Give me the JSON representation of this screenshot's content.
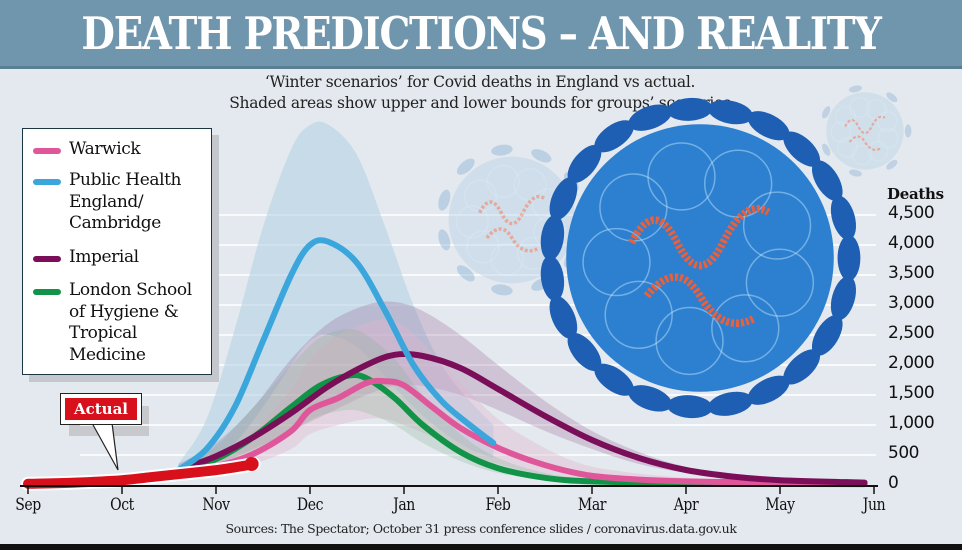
{
  "header": {
    "title": "DEATH PREDICTIONS – AND REALITY"
  },
  "subtitle": {
    "line1": "‘Winter scenarios’ for Covid deaths in England vs actual.",
    "line2": "Shaded areas show upper and lower bounds for groups’ scenarios"
  },
  "legend": {
    "items": [
      {
        "label": "Warwick",
        "color": "#e0569a"
      },
      {
        "label": "Public Health England/ Cambridge",
        "color": "#3aa6dc"
      },
      {
        "label": "Imperial",
        "color": "#7a0e58"
      },
      {
        "label": "London School of Hygiene & Tropical Medicine",
        "color": "#119447"
      }
    ]
  },
  "annotation": {
    "actual_label": "Actual",
    "actual_color": "#d8101c"
  },
  "illustration": {
    "description": "coronavirus-particle-illustration"
  },
  "sources": "Sources: The Spectator; October 31 press conference slides / coronavirus.data.gov.uk",
  "chart_data": {
    "type": "line",
    "title": "DEATH PREDICTIONS – AND REALITY",
    "subtitle": "‘Winter scenarios’ for Covid deaths in England vs actual. Shaded areas show upper and lower bounds for groups’ scenarios",
    "xlabel": "",
    "ylabel": "Deaths",
    "x_ticks": [
      "Sep",
      "Oct",
      "Nov",
      "Dec",
      "Jan",
      "Feb",
      "Mar",
      "Apr",
      "May",
      "Jun"
    ],
    "x_unit": "months since Sep 1",
    "xlim": [
      0,
      9
    ],
    "y_ticks": [
      "0",
      "500",
      "1,000",
      "1,500",
      "2,000",
      "2,500",
      "3,000",
      "3,500",
      "4,000",
      "4,500"
    ],
    "ylim": [
      0,
      4500
    ],
    "grid": "horizontal",
    "legend_position": "top-left",
    "series": [
      {
        "name": "Warwick",
        "color": "#e0569a",
        "x": [
          1.6,
          2.0,
          2.4,
          2.8,
          3.0,
          3.3,
          3.6,
          3.8,
          4.0,
          4.3,
          4.6,
          5.0,
          5.4,
          5.8,
          6.2,
          7.0,
          8.0,
          8.9
        ],
        "values": [
          200,
          310,
          520,
          900,
          1250,
          1450,
          1700,
          1730,
          1660,
          1300,
          950,
          620,
          380,
          210,
          120,
          60,
          40,
          30
        ],
        "band_upper": [
          300,
          450,
          900,
          1600,
          2100,
          2500,
          2700,
          2750,
          2650,
          2200,
          1700,
          1100,
          700,
          400,
          250,
          120,
          70,
          50
        ],
        "band_lower": [
          150,
          220,
          350,
          600,
          850,
          1000,
          1100,
          1100,
          1000,
          800,
          550,
          350,
          200,
          120,
          70,
          40,
          25,
          20
        ]
      },
      {
        "name": "Public Health England/ Cambridge",
        "color": "#3aa6dc",
        "x": [
          1.6,
          1.9,
          2.2,
          2.5,
          2.8,
          3.0,
          3.2,
          3.5,
          3.8,
          4.1,
          4.4,
          4.7,
          4.95
        ],
        "values": [
          250,
          600,
          1300,
          2400,
          3500,
          4000,
          4050,
          3700,
          2900,
          2000,
          1400,
          1000,
          700
        ],
        "band_upper": [
          350,
          1100,
          2600,
          4300,
          5600,
          6000,
          6000,
          5500,
          4300,
          3000,
          2000,
          1400,
          1000
        ],
        "band_lower": [
          180,
          350,
          700,
          1300,
          2000,
          2400,
          2500,
          2300,
          1800,
          1300,
          900,
          600,
          450
        ]
      },
      {
        "name": "Imperial",
        "color": "#7a0e58",
        "x": [
          1.6,
          2.0,
          2.4,
          2.8,
          3.2,
          3.6,
          3.9,
          4.2,
          4.6,
          5.0,
          5.5,
          6.0,
          6.5,
          7.0,
          7.5,
          8.0,
          8.9
        ],
        "values": [
          250,
          480,
          800,
          1200,
          1650,
          2000,
          2170,
          2150,
          1950,
          1600,
          1150,
          750,
          450,
          250,
          140,
          80,
          40
        ],
        "band_upper": [
          350,
          700,
          1300,
          2100,
          2700,
          3000,
          3050,
          2900,
          2500,
          2000,
          1400,
          900,
          550,
          300,
          170,
          100,
          50
        ],
        "band_lower": [
          180,
          350,
          600,
          900,
          1200,
          1500,
          1650,
          1650,
          1500,
          1250,
          900,
          600,
          350,
          200,
          110,
          60,
          30
        ]
      },
      {
        "name": "London School of Hygiene & Tropical Medicine",
        "color": "#119447",
        "x": [
          1.6,
          2.0,
          2.4,
          2.8,
          3.1,
          3.4,
          3.6,
          3.9,
          4.2,
          4.6,
          5.0,
          5.5,
          6.0,
          7.0,
          8.0,
          8.9
        ],
        "values": [
          220,
          430,
          800,
          1300,
          1650,
          1820,
          1780,
          1450,
          1000,
          550,
          280,
          120,
          60,
          30,
          20,
          15
        ],
        "band_upper": [
          300,
          650,
          1300,
          2000,
          2450,
          2600,
          2500,
          2100,
          1500,
          850,
          450,
          200,
          100,
          40,
          25,
          20
        ],
        "band_lower": [
          150,
          300,
          550,
          900,
          1150,
          1250,
          1200,
          1000,
          700,
          400,
          200,
          90,
          40,
          20,
          15,
          10
        ]
      },
      {
        "name": "Actual",
        "color": "#d8101c",
        "x": [
          0.0,
          0.5,
          1.0,
          1.3,
          1.6,
          1.9,
          2.1,
          2.3,
          2.4
        ],
        "values": [
          20,
          40,
          80,
          130,
          180,
          230,
          270,
          320,
          350
        ]
      }
    ]
  }
}
